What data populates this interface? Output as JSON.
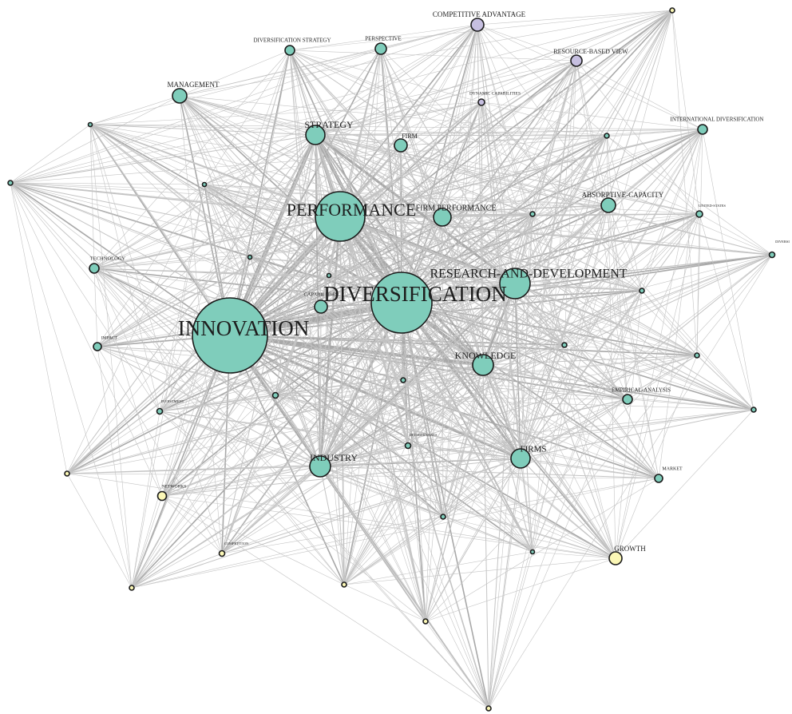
{
  "colors": {
    "cluster_teal": "#7fcdbb",
    "cluster_lavender": "#c6bfe0",
    "cluster_yellow": "#fbf7b6",
    "edge": "#c4c4c4",
    "edge_strong": "#a8a8a8",
    "node_outline": "#1a1a1a"
  },
  "nodes": [
    {
      "id": "innovation",
      "label": "INNOVATION",
      "cluster": "teal"
    },
    {
      "id": "diversification",
      "label": "DIVERSIFICATION",
      "cluster": "teal"
    },
    {
      "id": "performance",
      "label": "PERFORMANCE",
      "cluster": "teal"
    },
    {
      "id": "rnd",
      "label": "RESEARCH-AND-DEVELOPMENT",
      "cluster": "teal"
    },
    {
      "id": "knowledge",
      "label": "KNOWLEDGE",
      "cluster": "teal"
    },
    {
      "id": "industry",
      "label": "INDUSTRY",
      "cluster": "teal"
    },
    {
      "id": "firms",
      "label": "FIRMS",
      "cluster": "teal"
    },
    {
      "id": "strategy",
      "label": "STRATEGY",
      "cluster": "teal"
    },
    {
      "id": "firm_performance",
      "label": "FIRM PERFORMANCE",
      "cluster": "teal"
    },
    {
      "id": "firm",
      "label": "FIRM",
      "cluster": "teal"
    },
    {
      "id": "management",
      "label": "MANAGEMENT",
      "cluster": "teal"
    },
    {
      "id": "div_strategy",
      "label": "DIVERSIFICATION STRATEGY",
      "cluster": "teal"
    },
    {
      "id": "perspective",
      "label": "PERSPECTIVE",
      "cluster": "teal"
    },
    {
      "id": "competitive_adv",
      "label": "COMPETITIVE ADVANTAGE",
      "cluster": "lavender"
    },
    {
      "id": "rbv",
      "label": "RESOURCE-BASED VIEW",
      "cluster": "lavender"
    },
    {
      "id": "dynamic_cap",
      "label": "DYNAMIC CAPABILITIES",
      "cluster": "lavender"
    },
    {
      "id": "absorptive",
      "label": "ABSORPTIVE-CAPACITY",
      "cluster": "teal"
    },
    {
      "id": "intl_div",
      "label": "INTERNATIONAL DIVERSIFICATION",
      "cluster": "teal"
    },
    {
      "id": "united_states",
      "label": "UNITED-STATES",
      "cluster": "teal"
    },
    {
      "id": "divers",
      "label": "DIVERSI",
      "cluster": "teal"
    },
    {
      "id": "technology",
      "label": "TECHNOLOGY",
      "cluster": "teal"
    },
    {
      "id": "impact",
      "label": "IMPACT",
      "cluster": "teal"
    },
    {
      "id": "capabilities",
      "label": "CAPABILITIES",
      "cluster": "teal"
    },
    {
      "id": "investment",
      "label": "INVESTMENT",
      "cluster": "teal"
    },
    {
      "id": "empirical",
      "label": "EMPIRICAL-ANALYSIS",
      "cluster": "teal"
    },
    {
      "id": "market",
      "label": "MARKET",
      "cluster": "teal"
    },
    {
      "id": "growth",
      "label": "GROWTH",
      "cluster": "yellow"
    },
    {
      "id": "networks",
      "label": "NETWORKS",
      "cluster": "yellow"
    },
    {
      "id": "competition",
      "label": "COMPETITION",
      "cluster": "yellow"
    },
    {
      "id": "determinants",
      "label": "DETERMINANTS",
      "cluster": "teal"
    },
    {
      "id": "m_a",
      "label": "",
      "cluster": "teal"
    },
    {
      "id": "s_tr",
      "label": "",
      "cluster": "yellow"
    },
    {
      "id": "s_l",
      "label": "",
      "cluster": "teal"
    },
    {
      "id": "s_tl",
      "label": "",
      "cluster": "teal"
    },
    {
      "id": "s_ml",
      "label": "",
      "cluster": "yellow"
    },
    {
      "id": "s_b1",
      "label": "",
      "cluster": "yellow"
    },
    {
      "id": "s_b2",
      "label": "",
      "cluster": "yellow"
    },
    {
      "id": "s_b3",
      "label": "",
      "cluster": "yellow"
    },
    {
      "id": "s_bottom",
      "label": "",
      "cluster": "yellow"
    },
    {
      "id": "s_c1",
      "label": "",
      "cluster": "teal"
    },
    {
      "id": "s_c2",
      "label": "",
      "cluster": "teal"
    },
    {
      "id": "s_c3",
      "label": "",
      "cluster": "teal"
    },
    {
      "id": "s_c4",
      "label": "",
      "cluster": "teal"
    },
    {
      "id": "s_c5",
      "label": "",
      "cluster": "teal"
    },
    {
      "id": "s_c6",
      "label": "",
      "cluster": "teal"
    },
    {
      "id": "s_c7",
      "label": "",
      "cluster": "teal"
    },
    {
      "id": "s_r1",
      "label": "",
      "cluster": "teal"
    },
    {
      "id": "s_r2",
      "label": "",
      "cluster": "teal"
    },
    {
      "id": "s_r3",
      "label": "",
      "cluster": "teal"
    },
    {
      "id": "s_r4",
      "label": "",
      "cluster": "teal"
    },
    {
      "id": "s_c8",
      "label": "",
      "cluster": "teal"
    }
  ]
}
